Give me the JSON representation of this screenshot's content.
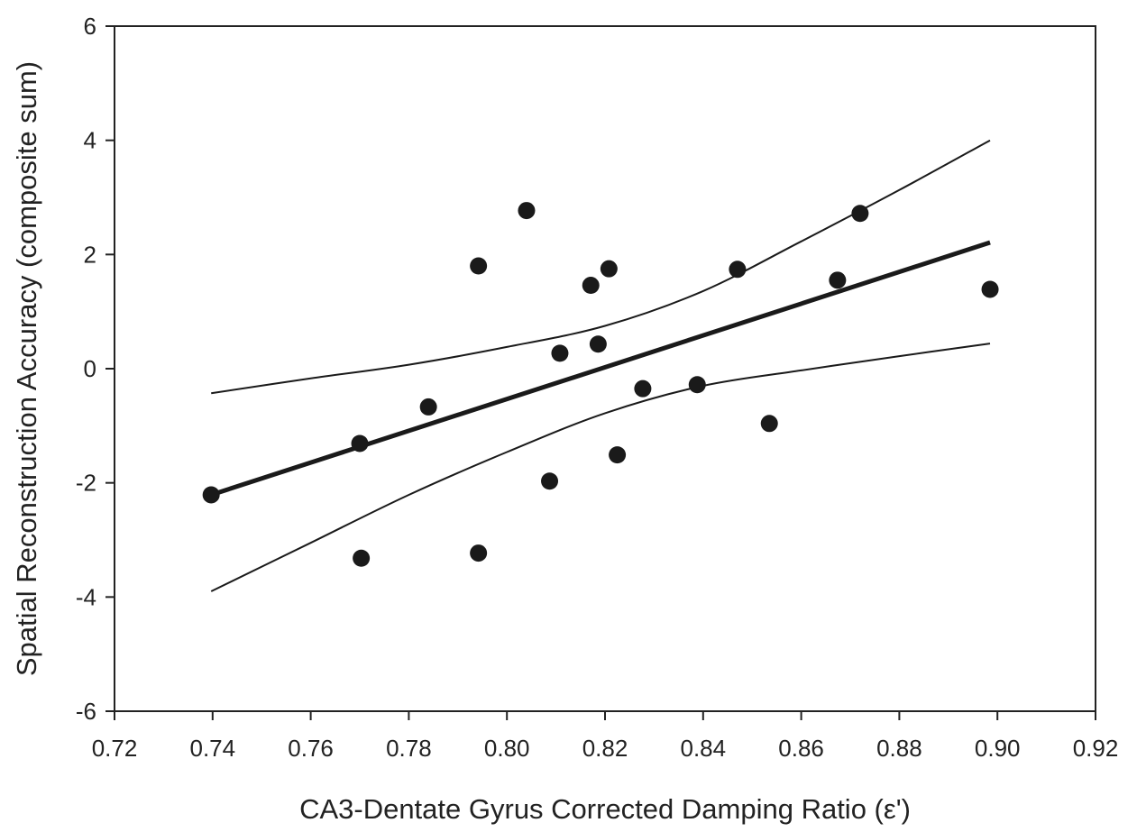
{
  "chart_data": {
    "type": "scatter",
    "title": "",
    "xlabel": "CA3-Dentate Gyrus Corrected Damping Ratio (ε')",
    "ylabel": "Spatial Reconstruction Accuracy (composite sum)",
    "xlim": [
      0.72,
      0.92
    ],
    "ylim": [
      -6,
      6
    ],
    "xticks": [
      "0.72",
      "0.74",
      "0.76",
      "0.78",
      "0.80",
      "0.82",
      "0.84",
      "0.86",
      "0.88",
      "0.90",
      "0.92"
    ],
    "yticks": [
      "-6",
      "-4",
      "-2",
      "0",
      "2",
      "4",
      "6"
    ],
    "grid": false,
    "legend": "none",
    "points": [
      {
        "x": 0.7397,
        "y": -2.21
      },
      {
        "x": 0.77,
        "y": -1.31
      },
      {
        "x": 0.7703,
        "y": -3.32
      },
      {
        "x": 0.784,
        "y": -0.67
      },
      {
        "x": 0.7942,
        "y": 1.8
      },
      {
        "x": 0.7942,
        "y": -3.23
      },
      {
        "x": 0.804,
        "y": 2.77
      },
      {
        "x": 0.8087,
        "y": -1.97
      },
      {
        "x": 0.8108,
        "y": 0.27
      },
      {
        "x": 0.8171,
        "y": 1.46
      },
      {
        "x": 0.8186,
        "y": 0.43
      },
      {
        "x": 0.8208,
        "y": 1.75
      },
      {
        "x": 0.8225,
        "y": -1.51
      },
      {
        "x": 0.8277,
        "y": -0.35
      },
      {
        "x": 0.8388,
        "y": -0.28
      },
      {
        "x": 0.847,
        "y": 1.74
      },
      {
        "x": 0.8535,
        "y": -0.96
      },
      {
        "x": 0.8674,
        "y": 1.55
      },
      {
        "x": 0.872,
        "y": 2.72
      },
      {
        "x": 0.8985,
        "y": 1.39
      }
    ],
    "fit_line": {
      "x": [
        0.7397,
        0.8985
      ],
      "y": [
        -2.21,
        2.21
      ]
    },
    "confidence_upper": {
      "x": [
        0.7397,
        0.76,
        0.78,
        0.8,
        0.82,
        0.84,
        0.86,
        0.88,
        0.8985
      ],
      "y": [
        -0.43,
        -0.17,
        0.07,
        0.38,
        0.75,
        1.36,
        2.23,
        3.13,
        4.0
      ]
    },
    "confidence_lower": {
      "x": [
        0.7397,
        0.76,
        0.78,
        0.8,
        0.82,
        0.84,
        0.86,
        0.88,
        0.8985
      ],
      "y": [
        -3.9,
        -3.05,
        -2.21,
        -1.46,
        -0.78,
        -0.3,
        -0.03,
        0.22,
        0.44
      ]
    },
    "colors": {
      "marks": "#1a1a1a",
      "axis": "#222222"
    }
  }
}
